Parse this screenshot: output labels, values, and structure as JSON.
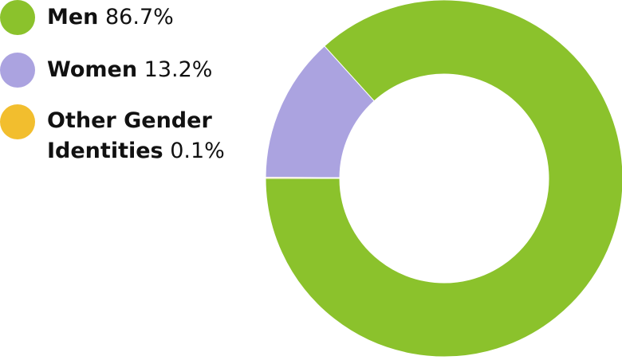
{
  "chart_data": {
    "type": "pie",
    "categories": [
      "Men",
      "Women",
      "Other Gender Identities"
    ],
    "values": [
      86.7,
      13.2,
      0.1
    ],
    "value_labels": [
      "86.7%",
      "13.2%",
      "0.1%"
    ],
    "colors": [
      "#8BC22C",
      "#ABA3E0",
      "#F2BE2E"
    ],
    "donut": true,
    "start_angle_deg": 180,
    "direction": "counterclockwise",
    "legend_position": "top-left"
  }
}
